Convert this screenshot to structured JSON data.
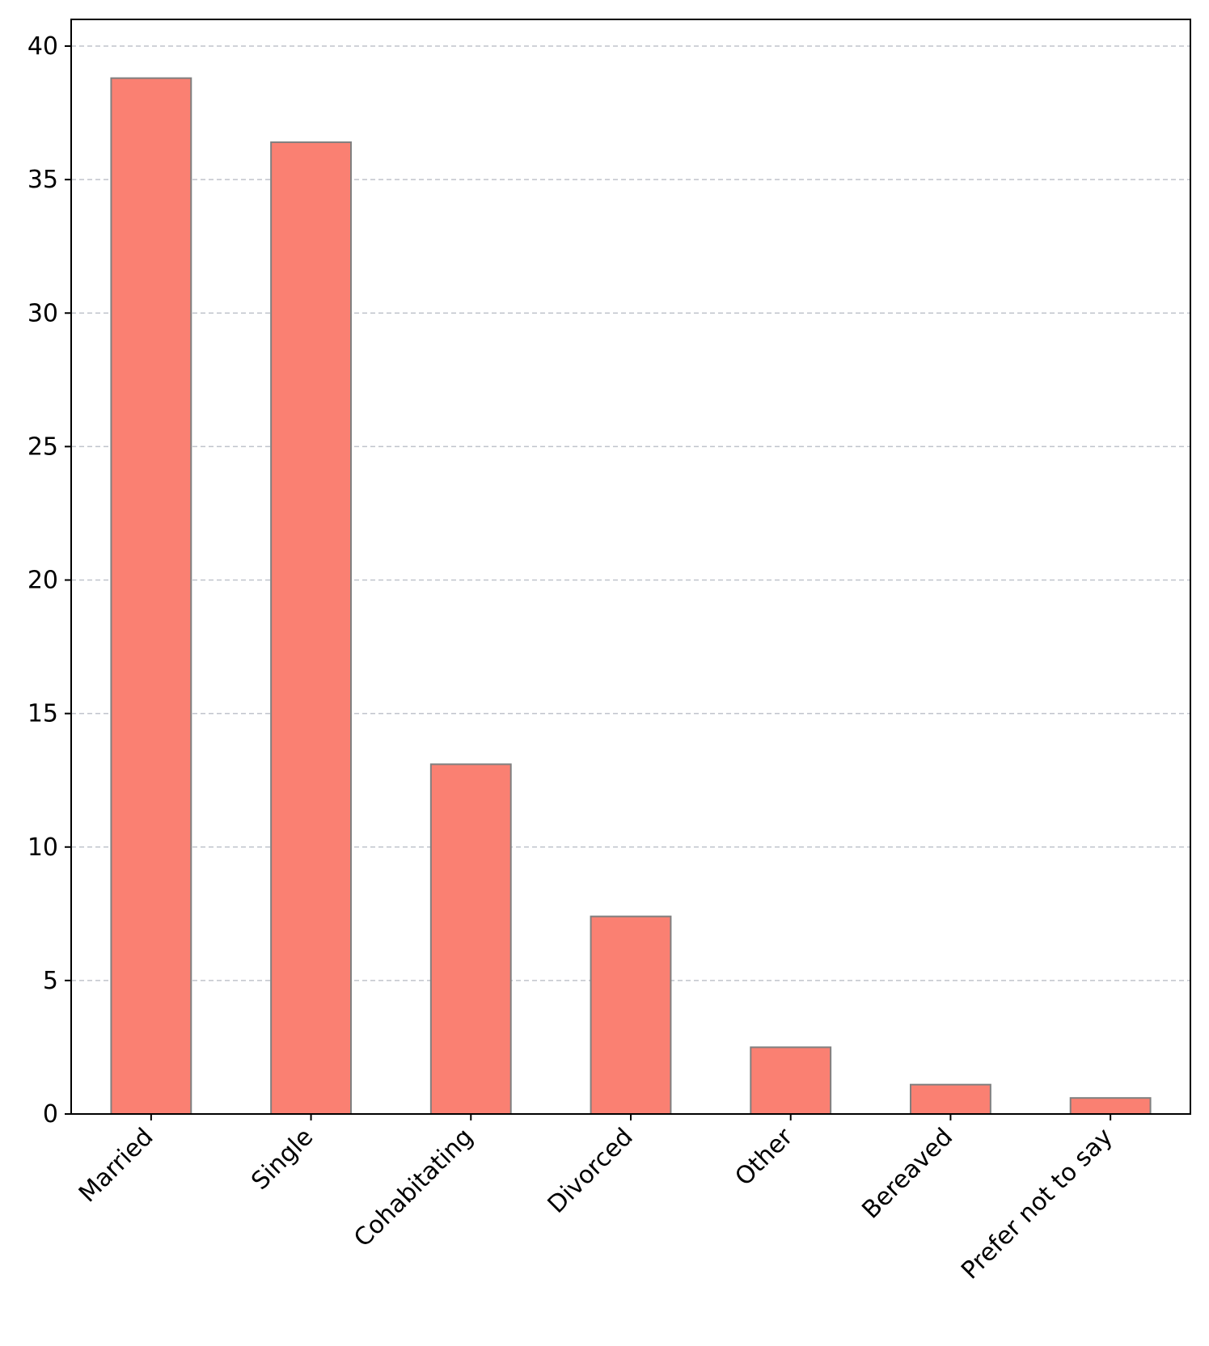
{
  "chart_data": {
    "type": "bar",
    "title": "",
    "xlabel": "",
    "ylabel": "",
    "categories": [
      "Married",
      "Single",
      "Cohabitating",
      "Divorced",
      "Other",
      "Bereaved",
      "Prefer not to say"
    ],
    "values": [
      38.8,
      36.4,
      13.1,
      7.4,
      2.5,
      1.1,
      0.6
    ],
    "ylim": [
      0,
      41
    ],
    "yticks": [
      0,
      5,
      10,
      15,
      20,
      25,
      30,
      35,
      40
    ],
    "grid": "y-dashed",
    "bar_color": "#FA8072",
    "bar_edge_color": "#808080",
    "grid_color": "#C0C4CC",
    "axis_color": "#000000"
  }
}
